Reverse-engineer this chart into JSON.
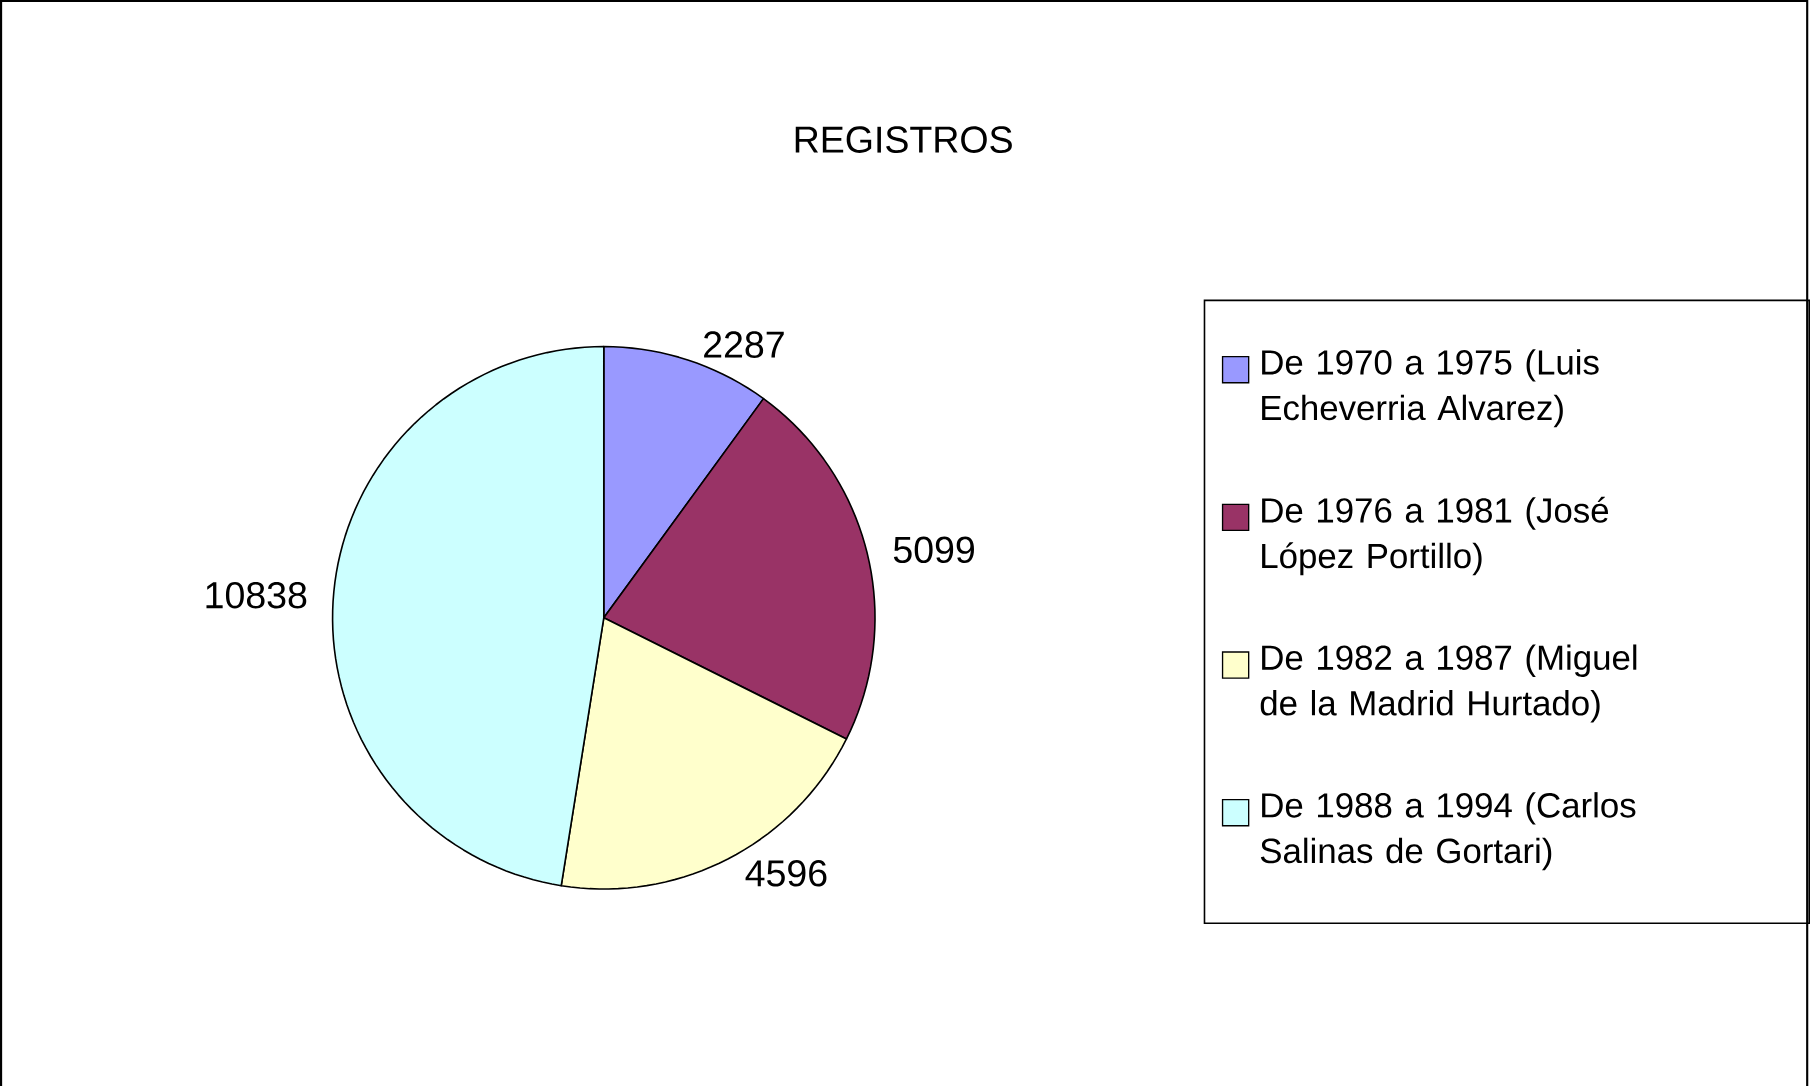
{
  "chart_data": {
    "type": "pie",
    "title": "REGISTROS",
    "categories": [
      "De 1970 a 1975 (Luis Echeverria Alvarez)",
      "De 1976 a 1981 (José López Portillo)",
      "De 1982 a 1987 (Miguel de la Madrid Hurtado)",
      "De 1988 a 1994 (Carlos Salinas de Gortari)"
    ],
    "values": [
      2287,
      5099,
      4596,
      10838
    ],
    "colors": [
      "#9999ff",
      "#993366",
      "#ffffcc",
      "#ccffff"
    ],
    "data_labels": true,
    "legend": "right"
  }
}
